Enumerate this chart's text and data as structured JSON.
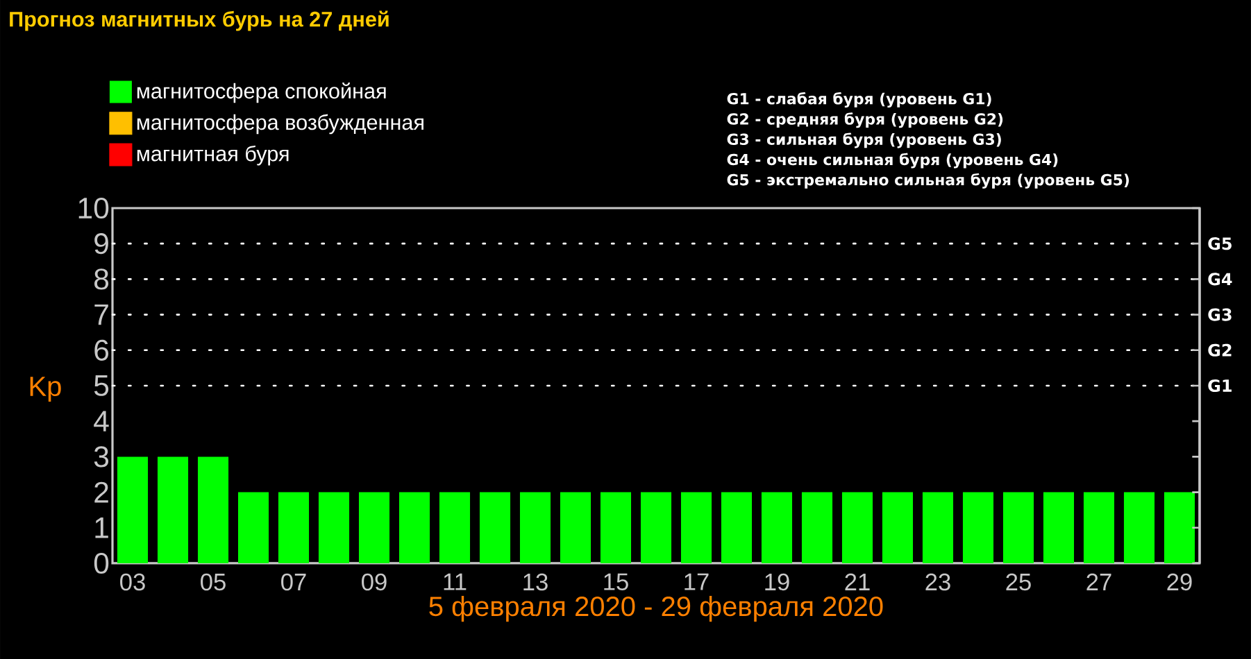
{
  "chart_data": {
    "type": "bar",
    "title": "Прогноз магнитных бурь на 27 дней",
    "xlabel": "5 февраля 2020 - 29 февраля 2020",
    "ylabel": "Kp",
    "categories": [
      "03",
      null,
      "05",
      null,
      "07",
      null,
      "09",
      null,
      "11",
      null,
      "13",
      null,
      "15",
      null,
      "17",
      null,
      "19",
      null,
      "21",
      null,
      "23",
      null,
      "25",
      null,
      "27",
      null,
      "29"
    ],
    "series": [
      {
        "name": "магнитосфера спокойная",
        "color": "#00ff00",
        "values": [
          3,
          3,
          3,
          2,
          2,
          2,
          2,
          2,
          2,
          2,
          2,
          2,
          2,
          2,
          2,
          2,
          2,
          2,
          2,
          2,
          2,
          2,
          2,
          2,
          2,
          2,
          2
        ]
      },
      {
        "name": "магнитосфера возбужденная",
        "color": "#ffbf00",
        "values": [
          null,
          null,
          null,
          null,
          null,
          null,
          null,
          null,
          null,
          null,
          null,
          null,
          null,
          null,
          null,
          null,
          null,
          null,
          null,
          null,
          null,
          null,
          null,
          null,
          null,
          null,
          null
        ]
      },
      {
        "name": "магнитная буря",
        "color": "#ff0000",
        "values": [
          null,
          null,
          null,
          null,
          null,
          null,
          null,
          null,
          null,
          null,
          null,
          null,
          null,
          null,
          null,
          null,
          null,
          null,
          null,
          null,
          null,
          null,
          null,
          null,
          null,
          null,
          null
        ]
      }
    ],
    "stacked": true,
    "legend": "top left",
    "ylim": [
      0,
      10
    ],
    "yticks": [
      0,
      1,
      2,
      3,
      4,
      5,
      6,
      7,
      8,
      9,
      10
    ],
    "ref_lines": [
      {
        "axis": "y",
        "value": 5,
        "label": "G1",
        "color": "#ffffff",
        "line_style": "dotted"
      },
      {
        "axis": "y",
        "value": 6,
        "label": "G2",
        "color": "#ffffff",
        "line_style": "dotted"
      },
      {
        "axis": "y",
        "value": 7,
        "label": "G3",
        "color": "#ffffff",
        "line_style": "dotted"
      },
      {
        "axis": "y",
        "value": 8,
        "label": "G4",
        "color": "#ffffff",
        "line_style": "dotted"
      },
      {
        "axis": "y",
        "value": 9,
        "label": "G5",
        "color": "#ffffff",
        "line_style": "dotted"
      }
    ],
    "annotations": [
      "G1 - слабая буря (уровень G1)",
      "G2 - средняя буря (уровень G2)",
      "G3 - сильная буря (уровень G3)",
      "G4 - очень сильная буря (уровень G4)",
      "G5 - экстремально сильная буря (уровень G5)"
    ]
  }
}
